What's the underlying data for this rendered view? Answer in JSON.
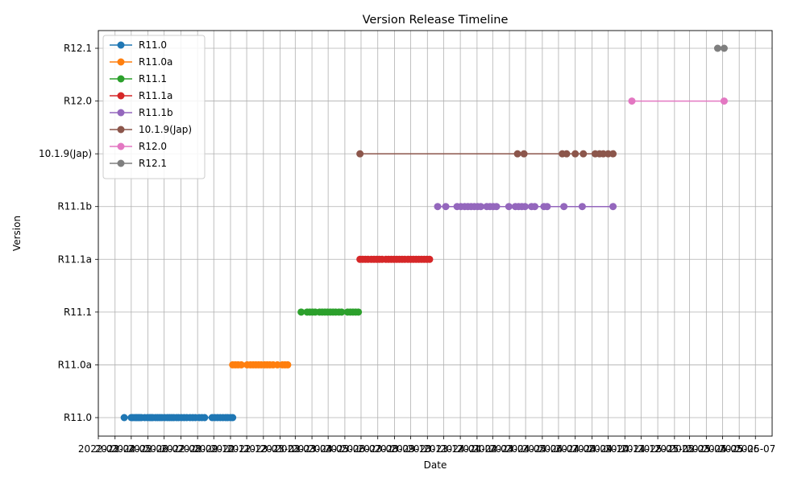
{
  "chart_data": {
    "type": "line",
    "title": "Version Release Timeline",
    "xlabel": "Date",
    "ylabel": "Version",
    "grid": true,
    "legend_position": "top-left",
    "xlim": [
      "2022-03-01",
      "2025-08-01"
    ],
    "x_ticks": [
      "2022-03",
      "2022-04",
      "2022-05",
      "2022-06",
      "2022-07",
      "2022-08",
      "2022-09",
      "2022-10",
      "2022-11",
      "2022-12",
      "2023-01",
      "2023-02",
      "2023-03",
      "2023-04",
      "2023-05",
      "2023-06",
      "2023-07",
      "2023-08",
      "2023-09",
      "2023-10",
      "2023-11",
      "2023-12",
      "2024-01",
      "2024-02",
      "2024-03",
      "2024-04",
      "2024-05",
      "2024-06",
      "2024-07",
      "2024-08",
      "2024-09",
      "2024-10",
      "2024-11",
      "2024-12",
      "2025-01",
      "2025-02",
      "2025-03",
      "2025-04",
      "2025-05",
      "2025-06",
      "2025-07"
    ],
    "categories": [
      "R11.0",
      "R11.0a",
      "R11.1",
      "R11.1a",
      "R11.1b",
      "10.1.9(Jap)",
      "R12.0",
      "R12.1"
    ],
    "series": [
      {
        "name": "R11.0",
        "color": "#1f77b4",
        "level": "R11.0",
        "dates": [
          "2022-04-18",
          "2022-05-01",
          "2022-05-04",
          "2022-05-08",
          "2022-05-11",
          "2022-05-14",
          "2022-05-17",
          "2022-05-20",
          "2022-05-26",
          "2022-05-31",
          "2022-06-04",
          "2022-06-07",
          "2022-06-10",
          "2022-06-15",
          "2022-06-19",
          "2022-06-23",
          "2022-06-27",
          "2022-07-02",
          "2022-07-07",
          "2022-07-11",
          "2022-07-15",
          "2022-07-19",
          "2022-07-24",
          "2022-07-28",
          "2022-08-02",
          "2022-08-07",
          "2022-08-12",
          "2022-08-18",
          "2022-08-23",
          "2022-08-28",
          "2022-09-04",
          "2022-09-09",
          "2022-09-14",
          "2022-09-28",
          "2022-10-03",
          "2022-10-08",
          "2022-10-13",
          "2022-10-18",
          "2022-10-23",
          "2022-10-27",
          "2022-11-01",
          "2022-11-05"
        ]
      },
      {
        "name": "R11.0a",
        "color": "#ff7f0e",
        "level": "R11.0a",
        "dates": [
          "2022-11-05",
          "2022-11-10",
          "2022-11-15",
          "2022-11-21",
          "2022-12-02",
          "2022-12-08",
          "2022-12-13",
          "2022-12-18",
          "2022-12-23",
          "2022-12-28",
          "2023-01-03",
          "2023-01-08",
          "2023-01-13",
          "2023-01-19",
          "2023-01-27",
          "2023-02-05",
          "2023-02-10",
          "2023-02-15"
        ]
      },
      {
        "name": "R11.1",
        "color": "#2ca02c",
        "level": "R11.1",
        "dates": [
          "2023-03-12",
          "2023-03-23",
          "2023-03-28",
          "2023-04-02",
          "2023-04-07",
          "2023-04-15",
          "2023-04-20",
          "2023-04-25",
          "2023-04-30",
          "2023-05-05",
          "2023-05-10",
          "2023-05-15",
          "2023-05-21",
          "2023-05-26",
          "2023-06-06",
          "2023-06-11",
          "2023-06-16",
          "2023-06-21",
          "2023-06-26"
        ]
      },
      {
        "name": "R11.1a",
        "color": "#d62728",
        "level": "R11.1a",
        "dates": [
          "2023-06-29",
          "2023-07-04",
          "2023-07-09",
          "2023-07-14",
          "2023-07-20",
          "2023-07-25",
          "2023-07-30",
          "2023-08-04",
          "2023-08-09",
          "2023-08-16",
          "2023-08-21",
          "2023-08-26",
          "2023-08-31",
          "2023-09-05",
          "2023-09-10",
          "2023-09-15",
          "2023-09-20",
          "2023-09-26",
          "2023-10-01",
          "2023-10-06",
          "2023-10-11",
          "2023-10-16",
          "2023-10-21",
          "2023-10-26",
          "2023-10-31",
          "2023-11-05"
        ]
      },
      {
        "name": "R11.1b",
        "color": "#9467bd",
        "level": "R11.1b",
        "dates": [
          "2023-11-20",
          "2023-12-05",
          "2023-12-26",
          "2024-01-02",
          "2024-01-09",
          "2024-01-15",
          "2024-01-21",
          "2024-01-27",
          "2024-02-02",
          "2024-02-08",
          "2024-02-19",
          "2024-02-25",
          "2024-03-02",
          "2024-03-08",
          "2024-03-31",
          "2024-04-12",
          "2024-04-18",
          "2024-04-24",
          "2024-04-30",
          "2024-05-12",
          "2024-05-18",
          "2024-06-04",
          "2024-06-10",
          "2024-07-11",
          "2024-08-14",
          "2024-10-10"
        ]
      },
      {
        "name": "10.1.9(Jap)",
        "color": "#8c564b",
        "level": "10.1.9(Jap)",
        "dates": [
          "2023-06-29",
          "2024-04-16",
          "2024-04-28",
          "2024-07-08",
          "2024-07-16",
          "2024-08-01",
          "2024-08-16",
          "2024-09-07",
          "2024-09-15",
          "2024-09-22",
          "2024-10-01",
          "2024-10-10"
        ]
      },
      {
        "name": "R12.0",
        "color": "#e377c2",
        "level": "R12.0",
        "dates": [
          "2024-11-14",
          "2025-05-04"
        ]
      },
      {
        "name": "R12.1",
        "color": "#7f7f7f",
        "level": "R12.1",
        "dates": [
          "2025-04-22",
          "2025-05-04"
        ]
      }
    ]
  }
}
